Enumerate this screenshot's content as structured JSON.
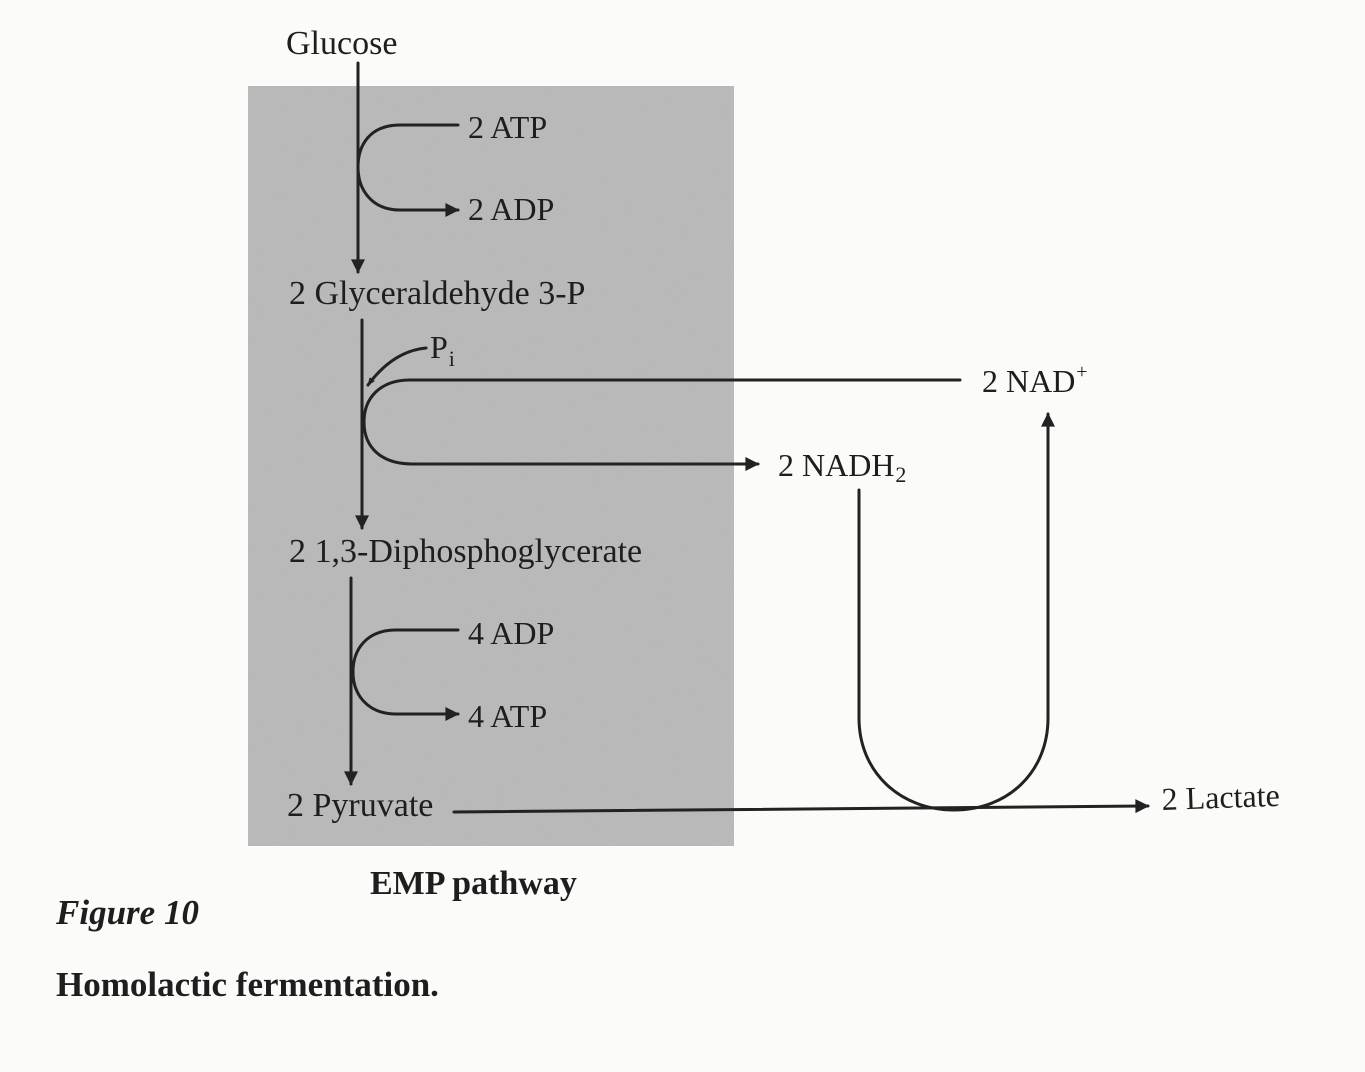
{
  "panel": {
    "fill": "#b9b9b9"
  },
  "metabolites": {
    "glucose": "Glucose",
    "g3p": "2 Glyceraldehyde 3-P",
    "dpg": "2 1,3-Diphosphoglycerate",
    "pyruvate": "2 Pyruvate",
    "lactate": "2 Lactate"
  },
  "cofactors": {
    "atp_in": "2 ATP",
    "adp_out": "2 ADP",
    "pi_base": "P",
    "pi_sub": "i",
    "nad_base": "2 NAD",
    "nad_sup": "+",
    "nadh_base": "2 NADH",
    "nadh_sub": "2",
    "adp_in": "4 ADP",
    "atp_out": "4 ATP"
  },
  "labels": {
    "pathway": "EMP pathway",
    "figure_label": "Figure 10",
    "figure_title": "Homolactic fermentation."
  }
}
